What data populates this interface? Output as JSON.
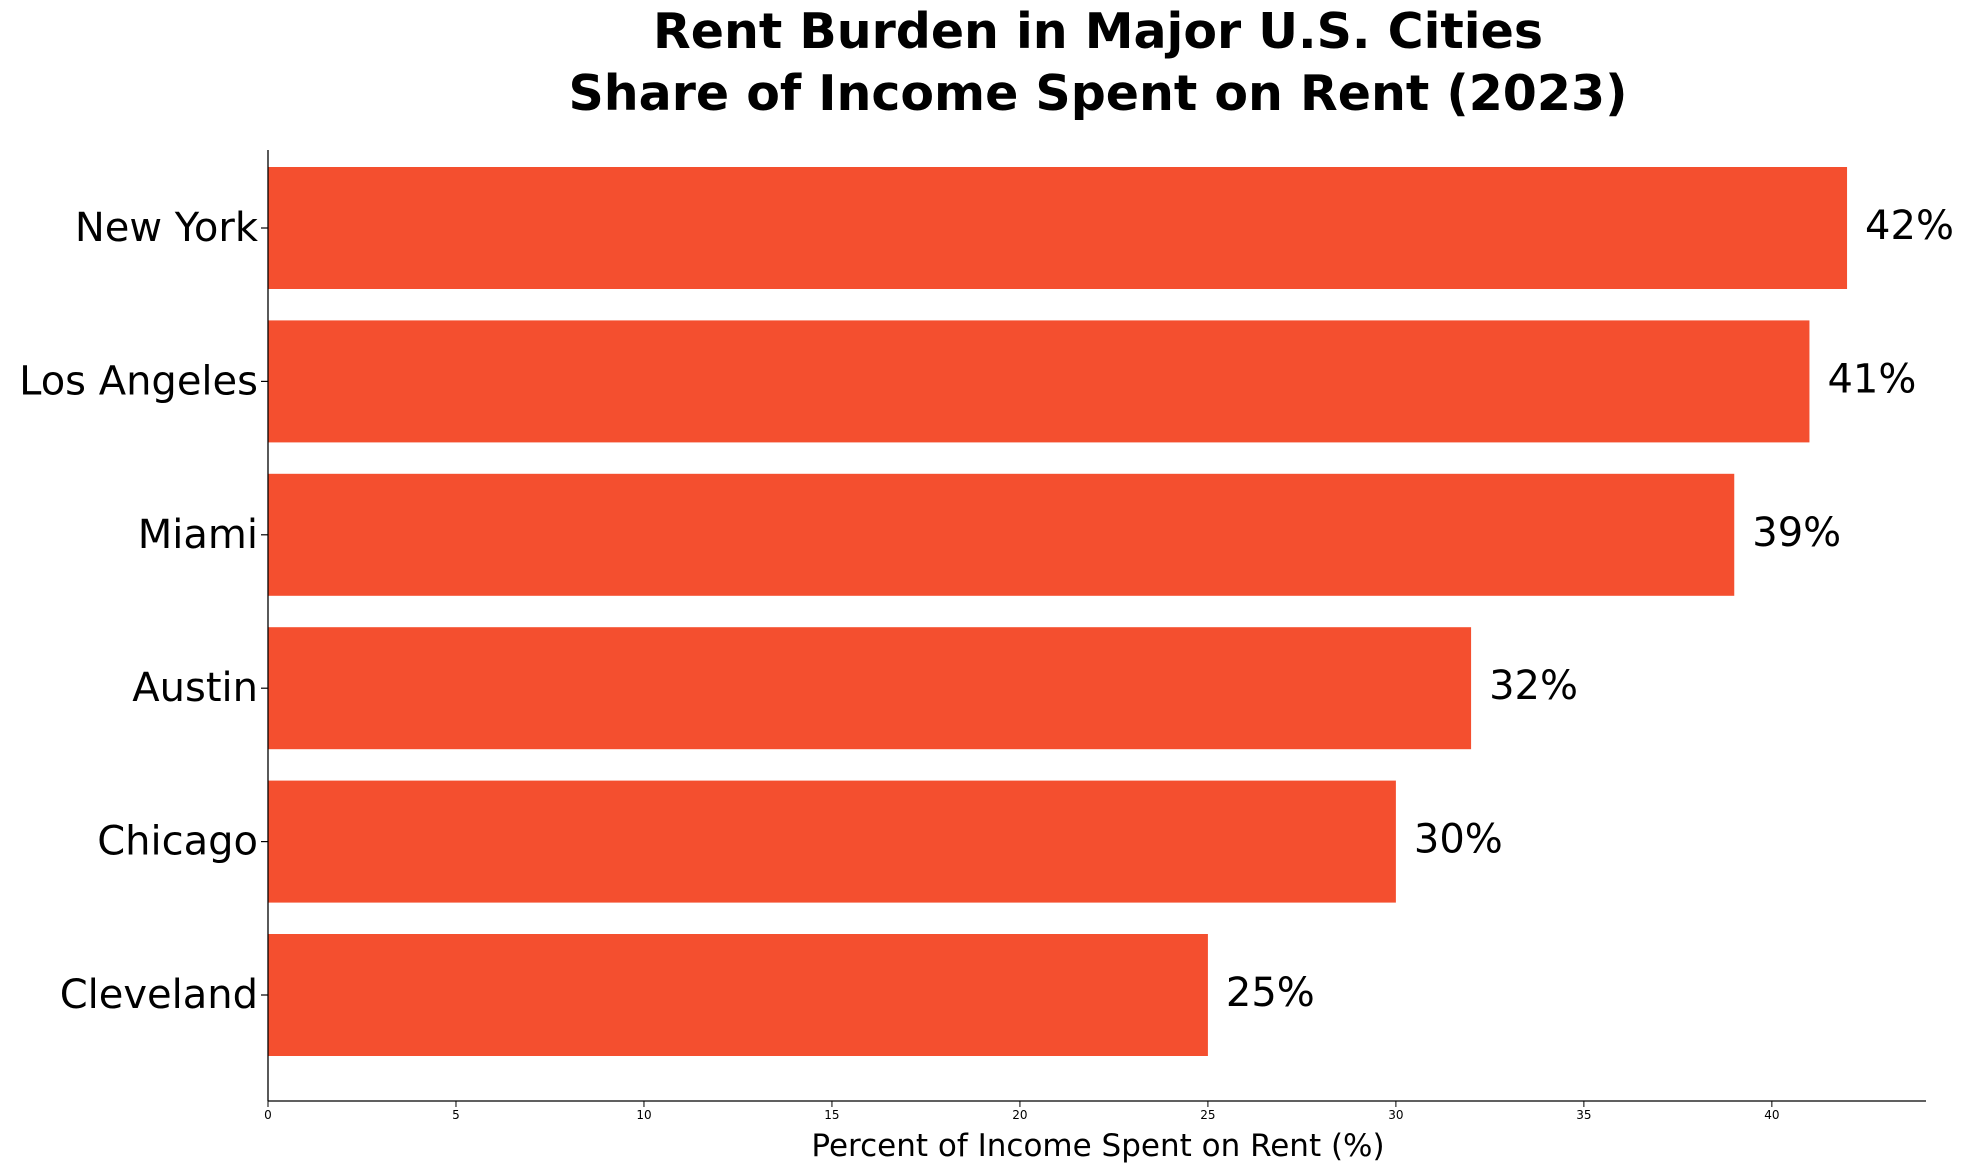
{
  "colors": {
    "bar": "#f44f2f",
    "axis": "#000000",
    "background": "#ffffff"
  },
  "chart_data": {
    "type": "bar",
    "orientation": "horizontal",
    "title_lines": [
      "Rent Burden in Major U.S. Cities",
      "Share of Income Spent on Rent (2023)"
    ],
    "categories": [
      "New York",
      "Los Angeles",
      "Miami",
      "Austin",
      "Chicago",
      "Cleveland"
    ],
    "values": [
      42,
      41,
      39,
      32,
      30,
      25
    ],
    "value_labels": [
      "42%",
      "41%",
      "39%",
      "32%",
      "30%",
      "25%"
    ],
    "xlabel": "Percent of Income Spent on Rent (%)",
    "ylabel": "",
    "xlim": [
      0,
      44.1
    ],
    "xticks": [
      0,
      5,
      10,
      15,
      20,
      25,
      30,
      35,
      40
    ],
    "xtick_labels": [
      "0",
      "5",
      "10",
      "15",
      "20",
      "25",
      "30",
      "35",
      "40"
    ],
    "grid": false,
    "legend": "none"
  }
}
